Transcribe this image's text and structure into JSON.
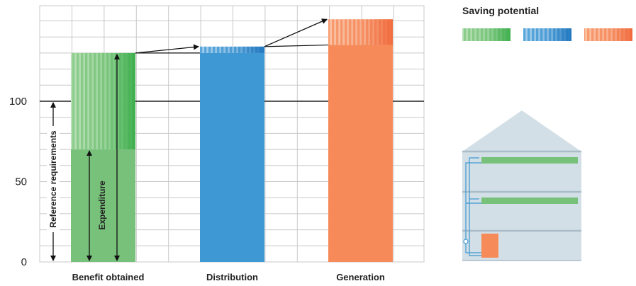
{
  "chart_data": {
    "type": "bar",
    "categories": [
      "Benefit obtained",
      "Distribution",
      "Generation"
    ],
    "series": [
      {
        "values": [
          70,
          130,
          135
        ]
      },
      {
        "values": [
          60,
          4,
          16
        ]
      }
    ],
    "yticks": [
      0,
      50,
      100
    ],
    "ylim": [
      0,
      155
    ],
    "reference_line": 100,
    "grid": true,
    "annotations": {
      "reference": "Reference requirements",
      "expenditure": "Expenditure"
    },
    "legend": {
      "title": "Saving potential",
      "placement": "top-right"
    }
  },
  "colors": {
    "benefit": "#77c17a",
    "benefit_saving": "#3aad4a",
    "distribution": "#3d98d3",
    "distribution_saving": "#1c74bd",
    "generation": "#f68a58",
    "generation_saving": "#f0683a",
    "grid": "#c8c8c8",
    "house_bg": "#d3dfe6",
    "house_line": "#a9bcc8",
    "pipe": "#3d98d3"
  }
}
